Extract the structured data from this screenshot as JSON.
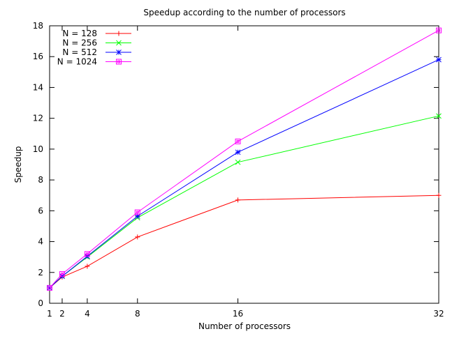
{
  "chart_data": {
    "type": "line",
    "title": "Speedup according to the number of processors",
    "xlabel": "Number of processors",
    "ylabel": "Speedup",
    "xlim": [
      1,
      32
    ],
    "ylim": [
      0,
      18
    ],
    "xticks": [
      1,
      2,
      4,
      8,
      16,
      32
    ],
    "yticks": [
      0,
      2,
      4,
      6,
      8,
      10,
      12,
      14,
      16,
      18
    ],
    "legend_position": "top-left",
    "grid": false,
    "x": [
      1,
      2,
      4,
      8,
      16,
      32
    ],
    "series": [
      {
        "name": "N = 128",
        "color": "#ff0000",
        "marker": "plus",
        "values": [
          1,
          1.7,
          2.4,
          4.3,
          6.7,
          7.0
        ]
      },
      {
        "name": "N = 256",
        "color": "#00ff00",
        "marker": "cross",
        "values": [
          1,
          1.75,
          3.0,
          5.55,
          9.15,
          12.15
        ]
      },
      {
        "name": "N = 512",
        "color": "#0000ff",
        "marker": "star",
        "values": [
          1,
          1.75,
          3.05,
          5.65,
          9.8,
          15.8
        ]
      },
      {
        "name": "N = 1024",
        "color": "#ff00ff",
        "marker": "square",
        "values": [
          1,
          1.9,
          3.2,
          5.9,
          10.5,
          17.7
        ]
      }
    ]
  }
}
